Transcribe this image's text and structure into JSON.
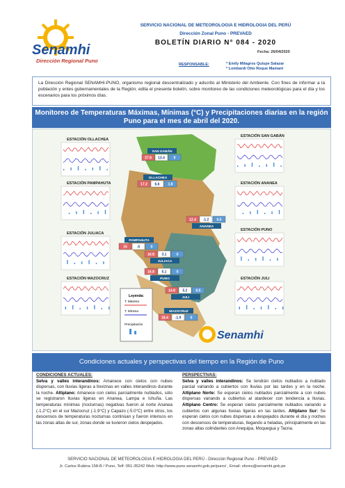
{
  "logo": {
    "name": "Senamhi",
    "subtitle": "Dirección Regional Puno"
  },
  "header": {
    "institution": "SERVICIO NACIONAL DE METEOROLOGIA E HIDROLOGIA DEL PERÚ",
    "office": "Dirección Zonal Puno - PREVAED",
    "bulletin": "BOLETÍN DIARIO N° 084 - 2020",
    "date": "Fecha: 26/04/2020",
    "responsible_label": "RESPONSABLE:",
    "responsible": [
      "* Emily Milagros Quispe Salazar",
      "* Lombardi Otto Roque Mamani"
    ]
  },
  "intro": "La Dirección Regional SENAMHI-PUNO, organismo regional descentralizado y adscrito al Ministerio del Ambiente. Con fines de informar a la población y entes gubernamentales de la Región, edita el presente boletín, sobre monitoreo de las condiciones meteorológicas para el día y los escenarios para los próximos días.",
  "map_section": {
    "title": "Monitoreo de Temperaturas Máximas, Mínimas (°C) y Precipitaciones diarias en la región Puno para el mes de abril del 2020.",
    "station_charts": [
      "ESTACIÓN OLLACHEA",
      "ESTACIÓN PAMPAHUTA",
      "ESTACIÓN JULIACA",
      "ESTACIÓN MAZOCRUZ",
      "ESTACIÓN SAN GABÁN",
      "ESTACIÓN ANANEA",
      "ESTACIÓN PUNO",
      "ESTACIÓN JULI"
    ],
    "stations": [
      {
        "name": "SAN GABÁN",
        "values": [
          27.8,
          13.4,
          0.0
        ]
      },
      {
        "name": "OLLACHEA",
        "values": [
          17.2,
          6.6,
          1.8
        ]
      },
      {
        "name": "ANANEA",
        "values": [
          12.4,
          -1.2,
          0.5
        ]
      },
      {
        "name": "PAMPAHUTA",
        "values": [
          15.0,
          -5.0,
          0.0
        ]
      },
      {
        "name": "JULIACA",
        "values": [
          16.8,
          3.1,
          0.0
        ]
      },
      {
        "name": "PUNO",
        "values": [
          16.8,
          5.1,
          0.0
        ]
      },
      {
        "name": "JULI",
        "values": [
          14.8,
          5.2,
          0.5
        ]
      },
      {
        "name": "MAZOCRUZ",
        "values": [
          18.4,
          -1.9,
          0.0
        ]
      }
    ],
    "legend": {
      "title": "Leyenda:",
      "items": [
        "T. Máxima",
        "T. Mínima",
        "Precipitación"
      ]
    },
    "logo": "Senamhi"
  },
  "conditions_section": {
    "title": "Condiciones actuales y perspectivas del tiempo en la Región de Puno",
    "current": {
      "heading": "CONDICIONES ACTUALES:",
      "items": [
        {
          "label": "Selva y valles interandinos:",
          "text": " Amanece con cielos con nubes dispersas, con lluvias ligeras a lloviznas en valles interandinos durante la noche. "
        },
        {
          "label": "Altiplano:",
          "text": " Amanece con cielos parcialmente nublados, sólo se registraron lluvias ligeras en Ananea, Lampa e Ichuña. Las temperaturas mínimas (nocturnas) negativas fueron al norte Ananea (-1.2°C) en el sur Mazocruz (-1.9°C) y Capazo (-5.0°C) entre otros, los descensos de temperaturas nocturnas continúan y fueron intensos en las zonas altas de sur, zonas donde se tuvieron cielos despejados."
        }
      ]
    },
    "outlook": {
      "heading": "PERSPECTIVAS:",
      "items": [
        {
          "label": "Selva y valles interandinos:",
          "text": " Se tendrán cielos nublados a nublado parcial variando a cubiertos con lluvias por las tardes y en la noche. "
        },
        {
          "label": "Altiplano Norte:",
          "text": " Se esperan cielos nublados parcialmente a con nubes dispersas variando a cubiertos al atardecer con tendencia a lluvias. "
        },
        {
          "label": "Altiplano Centro:",
          "text": " Se esperan cielos parcialmente nublados variando a cubiertos con algunas lluvias ligeras en las tardes. "
        },
        {
          "label": "Altiplano Sur:",
          "text": " Se esperan cielos con nubes dispersas a despejados durante el día y noches con descensos de temperaturas, llegando a heladas, principalmente en las zonas altas colindantes con Arequipa, Moquegua y Tacna."
        }
      ]
    }
  },
  "footer": {
    "line1": "SERVICIO NACIONAL DE METEOROLOGIA E HIDROLOGIA DEL PERÚ - Dirección Regional Puno - PREVAED",
    "line2": "Jr. Carlos Rubina 158-B / Puno, Telf: 051-35242 Web: http://www.puno.senamhi.gob.pe/puno/ , Email: sfores@senamhi.gob.pe"
  }
}
